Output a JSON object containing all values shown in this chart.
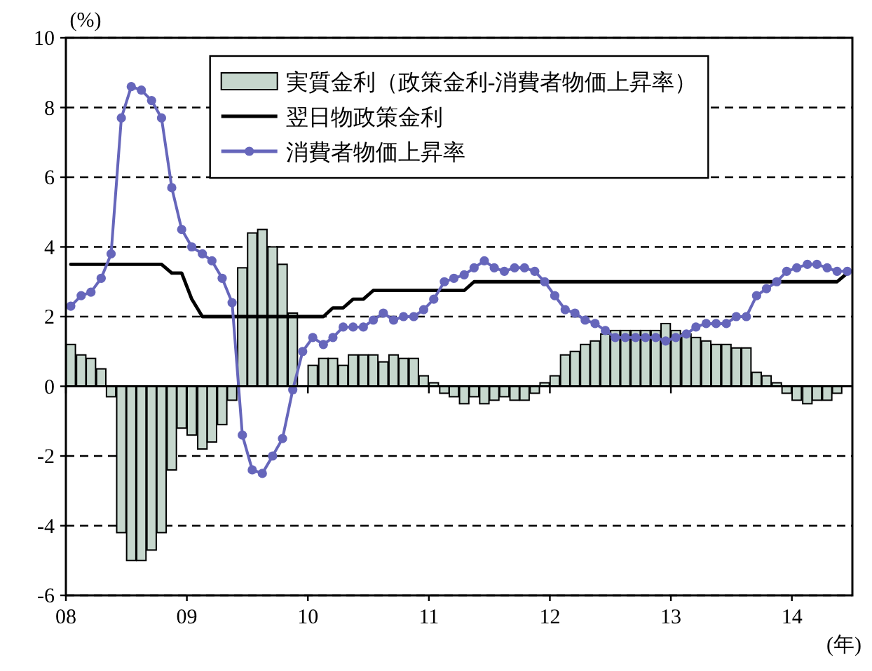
{
  "chart_data": {
    "type": "bar",
    "ylabel": "(%)",
    "xlabel": "(年)",
    "x": [
      "2008-01-16",
      "2008-02-16",
      "2008-03-16",
      "2008-04-16",
      "2008-05-16",
      "2008-06-16",
      "2008-07-16",
      "2008-08-16",
      "2008-09-16",
      "2008-10-16",
      "2008-11-16",
      "2008-12-16",
      "2009-01-16",
      "2009-02-16",
      "2009-03-16",
      "2009-04-16",
      "2009-05-16",
      "2009-06-16",
      "2009-07-16",
      "2009-08-16",
      "2009-09-16",
      "2009-10-16",
      "2009-11-16",
      "2009-12-16",
      "2010-01-16",
      "2010-02-16",
      "2010-03-16",
      "2010-04-16",
      "2010-05-16",
      "2010-06-16",
      "2010-07-16",
      "2010-08-16",
      "2010-09-16",
      "2010-10-16",
      "2010-11-16",
      "2010-12-16",
      "2011-01-16",
      "2011-02-16",
      "2011-03-16",
      "2011-04-16",
      "2011-05-16",
      "2011-06-16",
      "2011-07-16",
      "2011-08-16",
      "2011-09-16",
      "2011-10-16",
      "2011-11-16",
      "2011-12-16",
      "2012-01-16",
      "2012-02-16",
      "2012-03-16",
      "2012-04-16",
      "2012-05-16",
      "2012-06-16",
      "2012-07-16",
      "2012-08-16",
      "2012-09-16",
      "2012-10-16",
      "2012-11-16",
      "2012-12-16",
      "2013-01-16",
      "2013-02-16",
      "2013-03-16",
      "2013-04-16",
      "2013-05-16",
      "2013-06-16",
      "2013-07-16",
      "2013-08-16",
      "2013-09-16",
      "2013-10-16",
      "2013-11-16",
      "2013-12-16",
      "2014-01-16",
      "2014-02-16",
      "2014-03-16",
      "2014-04-16",
      "2014-05-16",
      "2014-06-16"
    ],
    "series": [
      {
        "name": "実質金利（政策金利-消費者物価上昇率）",
        "color": "#c6d7cd",
        "values": [
          1.2,
          0.9,
          0.8,
          0.5,
          -0.3,
          -4.2,
          -5.0,
          -5.0,
          -4.7,
          -4.2,
          -2.4,
          -1.2,
          -1.4,
          -1.8,
          -1.6,
          -1.1,
          -0.4,
          3.4,
          4.4,
          4.5,
          4.0,
          3.5,
          2.1,
          null,
          0.6,
          0.8,
          0.8,
          0.6,
          0.9,
          0.9,
          0.9,
          0.7,
          0.9,
          0.8,
          0.8,
          0.3,
          0.1,
          -0.2,
          -0.3,
          -0.5,
          -0.3,
          -0.5,
          -0.4,
          -0.3,
          -0.4,
          -0.4,
          -0.2,
          0.1,
          0.3,
          0.9,
          1.0,
          1.2,
          1.3,
          1.5,
          1.6,
          1.6,
          1.6,
          1.6,
          1.6,
          1.8,
          1.6,
          1.5,
          1.4,
          1.3,
          1.2,
          1.2,
          1.1,
          1.1,
          0.4,
          0.3,
          0.1,
          -0.2,
          -0.4,
          -0.5,
          -0.4,
          -0.4,
          -0.2,
          null
        ]
      },
      {
        "name": "翌日物政策金利",
        "type": "line",
        "color": "#000000",
        "values": [
          3.5,
          3.5,
          3.5,
          3.5,
          3.5,
          3.5,
          3.5,
          3.5,
          3.5,
          3.5,
          3.25,
          3.25,
          2.5,
          2.0,
          2.0,
          2.0,
          2.0,
          2.0,
          2.0,
          2.0,
          2.0,
          2.0,
          2.0,
          2.0,
          2.0,
          2.0,
          2.25,
          2.25,
          2.5,
          2.5,
          2.75,
          2.75,
          2.75,
          2.75,
          2.75,
          2.75,
          2.75,
          2.75,
          2.75,
          2.75,
          3.0,
          3.0,
          3.0,
          3.0,
          3.0,
          3.0,
          3.0,
          3.0,
          3.0,
          3.0,
          3.0,
          3.0,
          3.0,
          3.0,
          3.0,
          3.0,
          3.0,
          3.0,
          3.0,
          3.0,
          3.0,
          3.0,
          3.0,
          3.0,
          3.0,
          3.0,
          3.0,
          3.0,
          3.0,
          3.0,
          3.0,
          3.0,
          3.0,
          3.0,
          3.0,
          3.0,
          3.0,
          3.25
        ]
      },
      {
        "name": "消費者物価上昇率",
        "type": "line",
        "color": "#6666bb",
        "marker": "circle",
        "values": [
          2.3,
          2.6,
          2.7,
          3.1,
          3.8,
          7.7,
          8.6,
          8.5,
          8.2,
          7.7,
          5.7,
          4.5,
          4.0,
          3.8,
          3.6,
          3.1,
          2.4,
          -1.4,
          -2.4,
          -2.5,
          -2.0,
          -1.5,
          -0.1,
          1.0,
          1.4,
          1.2,
          1.4,
          1.7,
          1.7,
          1.7,
          1.9,
          2.1,
          1.9,
          2.0,
          2.0,
          2.2,
          2.5,
          3.0,
          3.1,
          3.2,
          3.4,
          3.6,
          3.4,
          3.3,
          3.4,
          3.4,
          3.3,
          3.0,
          2.6,
          2.2,
          2.1,
          1.9,
          1.8,
          1.6,
          1.4,
          1.4,
          1.4,
          1.4,
          1.4,
          1.3,
          1.4,
          1.5,
          1.7,
          1.8,
          1.8,
          1.8,
          2.0,
          2.0,
          2.6,
          2.8,
          3.0,
          3.3,
          3.4,
          3.5,
          3.5,
          3.4,
          3.3,
          3.3
        ]
      }
    ],
    "xlim": [
      "2008-01",
      "2014-07"
    ],
    "xticks": [
      {
        "value": "2008-01",
        "label": "08"
      },
      {
        "value": "2009-01",
        "label": "09"
      },
      {
        "value": "2010-01",
        "label": "10"
      },
      {
        "value": "2011-01",
        "label": "11"
      },
      {
        "value": "2012-01",
        "label": "12"
      },
      {
        "value": "2013-01",
        "label": "13"
      },
      {
        "value": "2014-01",
        "label": "14"
      }
    ],
    "ylim": [
      -6,
      10
    ],
    "yticks": [
      -6,
      -4,
      -2,
      0,
      2,
      4,
      6,
      8,
      10
    ],
    "grid": "y",
    "legend": "top"
  }
}
